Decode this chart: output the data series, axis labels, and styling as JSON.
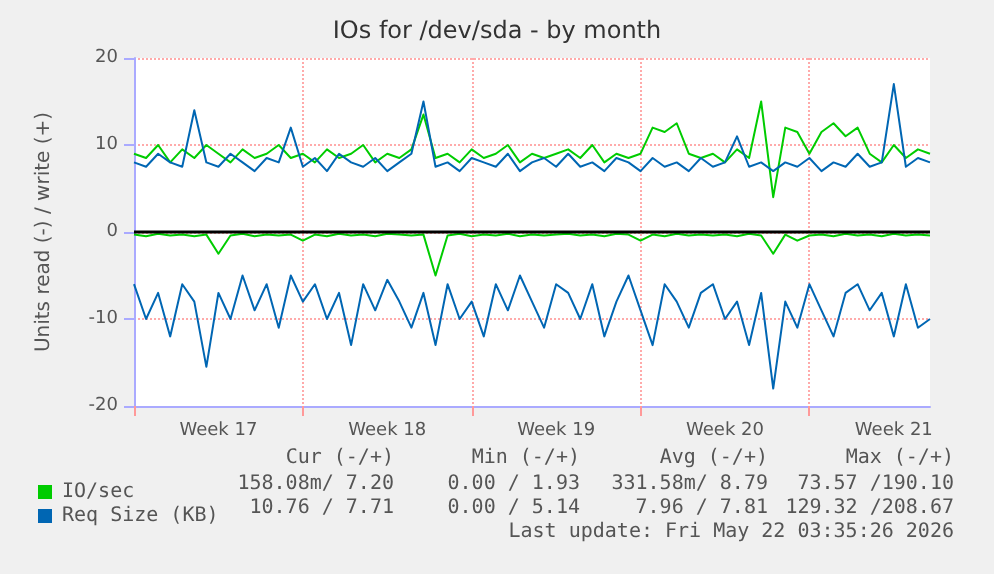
{
  "chart_data": {
    "type": "line",
    "title": "IOs for /dev/sda - by month",
    "ylabel": "Units read (-) / write (+)",
    "categories": [
      null,
      null,
      null,
      null,
      null,
      null,
      null,
      "Week 17",
      null,
      null,
      null,
      null,
      null,
      null,
      null,
      null,
      null,
      null,
      null,
      null,
      null,
      "Week 18",
      null,
      null,
      null,
      null,
      null,
      null,
      null,
      null,
      null,
      null,
      null,
      null,
      null,
      "Week 19",
      null,
      null,
      null,
      null,
      null,
      null,
      null,
      null,
      null,
      null,
      null,
      null,
      null,
      "Week 20",
      null,
      null,
      null,
      null,
      null,
      null,
      null,
      null,
      null,
      null,
      null,
      null,
      null,
      "Week 21",
      null,
      null,
      null
    ],
    "series": [
      {
        "name": "IO/sec",
        "color": "#00cc00",
        "values": [
          9,
          8.5,
          10,
          8,
          9.5,
          8.5,
          10,
          9,
          8,
          9.5,
          8.5,
          9,
          10,
          8.5,
          9,
          8,
          9.5,
          8.5,
          9,
          10,
          8,
          9,
          8.5,
          9.5,
          13.5,
          8.5,
          9,
          8,
          9.5,
          8.5,
          9,
          10,
          8,
          9,
          8.5,
          9,
          9.5,
          8.5,
          10,
          8,
          9,
          8.5,
          9,
          12,
          11.5,
          12.5,
          9,
          8.5,
          9,
          8,
          9.5,
          8.5,
          15,
          4,
          12,
          11.5,
          9,
          11.5,
          12.5,
          11,
          12,
          9,
          8,
          10,
          8.5,
          9.5,
          9
        ]
      },
      {
        "color": "#00cc00",
        "values": [
          -0.3,
          -0.5,
          -0.2,
          -0.4,
          -0.3,
          -0.5,
          -0.3,
          -2.5,
          -0.4,
          -0.2,
          -0.5,
          -0.3,
          -0.4,
          -0.3,
          -1,
          -0.3,
          -0.5,
          -0.2,
          -0.4,
          -0.3,
          -0.5,
          -0.2,
          -0.3,
          -0.4,
          -0.3,
          -5,
          -0.4,
          -0.2,
          -0.5,
          -0.3,
          -0.4,
          -0.2,
          -0.5,
          -0.3,
          -0.4,
          -0.3,
          -0.2,
          -0.4,
          -0.3,
          -0.5,
          -0.2,
          -0.3,
          -1,
          -0.3,
          -0.5,
          -0.2,
          -0.4,
          -0.3,
          -0.4,
          -0.3,
          -0.5,
          -0.2,
          -0.4,
          -2.5,
          -0.3,
          -1,
          -0.4,
          -0.3,
          -0.5,
          -0.2,
          -0.4,
          -0.3,
          -0.5,
          -0.2,
          -0.4,
          -0.3,
          -0.4
        ]
      },
      {
        "name": "Req Size (KB)",
        "color": "#0066b3",
        "values": [
          8,
          7.5,
          9,
          8,
          7.5,
          14,
          8,
          7.5,
          9,
          8,
          7,
          8.5,
          8,
          12,
          7.5,
          8.5,
          7,
          9,
          8,
          7.5,
          8.5,
          7,
          8,
          9,
          15,
          7.5,
          8,
          7,
          8.5,
          8,
          7.5,
          9,
          7,
          8,
          8.5,
          7.5,
          9,
          7.5,
          8,
          7,
          8.5,
          8,
          7,
          8.5,
          7.5,
          8,
          7,
          8.5,
          7.5,
          8,
          11,
          7.5,
          8,
          7,
          8,
          7.5,
          8.5,
          7,
          8,
          7.5,
          9,
          7.5,
          8,
          17,
          7.5,
          8.5,
          8
        ]
      },
      {
        "color": "#0066b3",
        "values": [
          -6,
          -10,
          -7,
          -12,
          -6,
          -8,
          -15.5,
          -7,
          -10,
          -5,
          -9,
          -6,
          -11,
          -5,
          -8,
          -6,
          -10,
          -7,
          -13,
          -6,
          -9,
          -5.5,
          -8,
          -11,
          -7,
          -13,
          -6,
          -10,
          -8,
          -12,
          -6,
          -9,
          -5,
          -8,
          -11,
          -6,
          -7,
          -10,
          -6,
          -12,
          -8,
          -5,
          -9,
          -13,
          -6,
          -8,
          -11,
          -7,
          -6,
          -10,
          -8,
          -13,
          -7,
          -18,
          -8,
          -11,
          -6,
          -9,
          -12,
          -7,
          -6,
          -9,
          -7,
          -12,
          -6,
          -11,
          -10
        ]
      }
    ],
    "ylim": [
      -20,
      20
    ],
    "yticks": [
      -20,
      -10,
      0,
      10,
      20
    ],
    "ref_lines": [
      {
        "axis": "y",
        "value": 0,
        "color": "#000000"
      }
    ],
    "grid": true,
    "legend": "bottom",
    "line_style": "solid",
    "marker": "none",
    "annotations": [
      "Cur (-/+)",
      "Min (-/+)",
      "Avg (-/+)",
      "Max (-/+)",
      "158.08m/ 7.20",
      "0.00 / 1.93",
      "331.58m/ 8.79",
      "73.57 /190.10",
      "10.76 / 7.71",
      "0.00 / 5.14",
      "7.96 / 7.81",
      "129.32 /208.67",
      "Last update: Fri May 22 03:35:26 2026"
    ]
  }
}
